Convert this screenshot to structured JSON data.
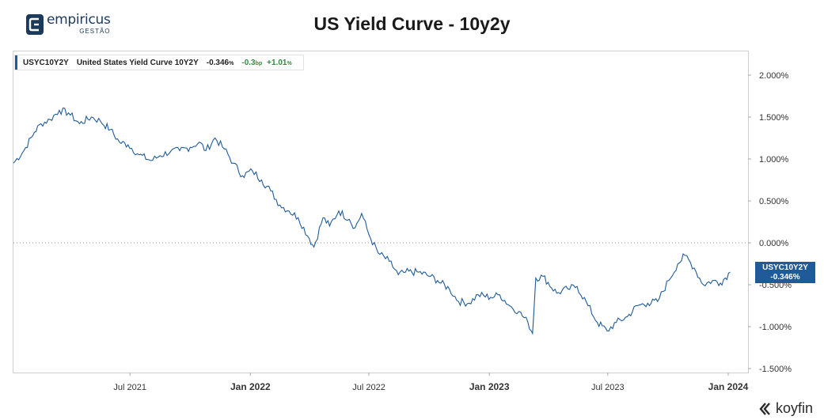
{
  "brand": {
    "name": "empiricus",
    "sub": "GESTÃO"
  },
  "footer_brand": "koyfin",
  "legend": {
    "ticker": "USYC10Y2Y",
    "name": "United States Yield Curve 10Y2Y",
    "value": "-0.346",
    "value_unit": "%",
    "change_bp": "-0.3",
    "change_bp_unit": "bp",
    "change_pct": "+1.01",
    "change_pct_unit": "%"
  },
  "last_value": {
    "ticker": "USYC10Y2Y",
    "value": "-0.346%"
  },
  "colors": {
    "line": "#1f5b98",
    "positive": "#2e8b3e",
    "brand": "#1b3a5c"
  },
  "chart_data": {
    "type": "line",
    "title": "US Yield Curve - 10y2y",
    "y_unit": "%",
    "ylim": [
      -1.6,
      2.3
    ],
    "x_range": [
      "2021-01-04",
      "2024-01-08"
    ],
    "y_ticks": [
      2.0,
      1.5,
      1.0,
      0.5,
      0.0,
      -0.5,
      -1.0,
      -1.5
    ],
    "y_tick_labels": [
      "2.000%",
      "1.500%",
      "1.000%",
      "0.500%",
      "0.000%",
      "-0.500%",
      "-1.000%",
      "-1.500%"
    ],
    "x_ticks": [
      {
        "date": "2021-07-01",
        "label": "Jul 2021",
        "bold": false
      },
      {
        "date": "2022-01-01",
        "label": "Jan 2022",
        "bold": true
      },
      {
        "date": "2022-07-01",
        "label": "Jul 2022",
        "bold": false
      },
      {
        "date": "2023-01-01",
        "label": "Jan 2023",
        "bold": true
      },
      {
        "date": "2023-07-01",
        "label": "Jul 2023",
        "bold": false
      },
      {
        "date": "2024-01-01",
        "label": "Jan 2024",
        "bold": true
      }
    ],
    "reference_line": 0.0,
    "series": [
      {
        "x": [
          "2021-01-04",
          "2021-01-20",
          "2021-02-05",
          "2021-02-15",
          "2021-03-01",
          "2021-03-15",
          "2021-03-29",
          "2021-04-15",
          "2021-05-03",
          "2021-05-17",
          "2021-06-01",
          "2021-06-15",
          "2021-06-28",
          "2021-07-15",
          "2021-08-02",
          "2021-08-16",
          "2021-09-01",
          "2021-09-15",
          "2021-10-01",
          "2021-10-15",
          "2021-10-25",
          "2021-11-08",
          "2021-11-22",
          "2021-12-06",
          "2021-12-20",
          "2022-01-04",
          "2022-01-18",
          "2022-02-01",
          "2022-02-15",
          "2022-03-01",
          "2022-03-15",
          "2022-04-01",
          "2022-04-08",
          "2022-04-22",
          "2022-05-02",
          "2022-05-16",
          "2022-06-01",
          "2022-06-10",
          "2022-06-20",
          "2022-07-01",
          "2022-07-15",
          "2022-08-01",
          "2022-08-15",
          "2022-08-26",
          "2022-09-15",
          "2022-10-03",
          "2022-10-14",
          "2022-11-01",
          "2022-11-15",
          "2022-12-01",
          "2022-12-15",
          "2023-01-03",
          "2023-01-17",
          "2023-02-01",
          "2023-02-15",
          "2023-03-01",
          "2023-03-08",
          "2023-03-13",
          "2023-03-24",
          "2023-04-14",
          "2023-05-01",
          "2023-05-15",
          "2023-06-01",
          "2023-06-15",
          "2023-06-30",
          "2023-07-14",
          "2023-07-31",
          "2023-08-15",
          "2023-08-31",
          "2023-09-15",
          "2023-10-02",
          "2023-10-16",
          "2023-10-27",
          "2023-11-10",
          "2023-11-24",
          "2023-12-08",
          "2023-12-20",
          "2024-01-04"
        ],
        "y": [
          0.95,
          1.1,
          1.32,
          1.42,
          1.47,
          1.58,
          1.55,
          1.42,
          1.5,
          1.45,
          1.35,
          1.2,
          1.17,
          1.05,
          0.98,
          1.04,
          1.09,
          1.1,
          1.14,
          1.2,
          1.1,
          1.25,
          1.12,
          0.95,
          0.8,
          0.86,
          0.75,
          0.62,
          0.45,
          0.38,
          0.3,
          0.05,
          -0.05,
          0.3,
          0.2,
          0.38,
          0.28,
          0.18,
          0.35,
          0.1,
          -0.12,
          -0.22,
          -0.38,
          -0.35,
          -0.35,
          -0.4,
          -0.45,
          -0.55,
          -0.7,
          -0.72,
          -0.62,
          -0.65,
          -0.62,
          -0.75,
          -0.82,
          -0.95,
          -1.08,
          -0.42,
          -0.4,
          -0.6,
          -0.55,
          -0.52,
          -0.75,
          -0.95,
          -1.05,
          -0.95,
          -0.88,
          -0.75,
          -0.72,
          -0.7,
          -0.45,
          -0.25,
          -0.15,
          -0.3,
          -0.5,
          -0.45,
          -0.48,
          -0.35
        ]
      }
    ]
  }
}
